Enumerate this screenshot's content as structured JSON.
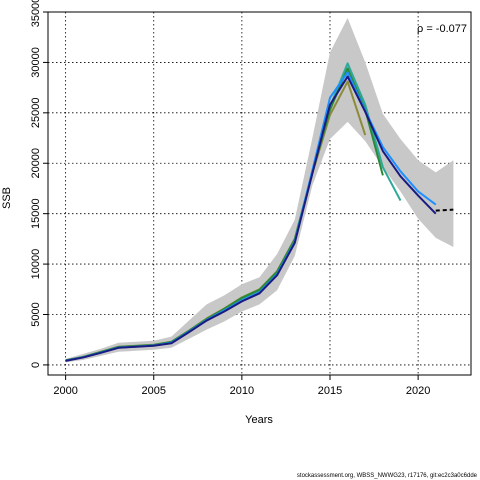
{
  "chart_data": {
    "type": "line",
    "xlabel": "Years",
    "ylabel": "SSB",
    "xlim": [
      1999,
      2023
    ],
    "ylim": [
      -1000,
      35000
    ],
    "x_ticks": [
      2000,
      2005,
      2010,
      2015,
      2020
    ],
    "y_ticks": [
      0,
      5000,
      10000,
      15000,
      20000,
      25000,
      30000,
      35000
    ],
    "grid": true,
    "annotation": "ρ = -0.077",
    "footer": "stockassessment.org, WBSS_NWWG23, r17176, git:ec2c3a0c6dde",
    "band": {
      "color": "#c8c8c8",
      "x": [
        2000,
        2001,
        2002,
        2003,
        2004,
        2005,
        2006,
        2007,
        2008,
        2009,
        2010,
        2011,
        2012,
        2013,
        2014,
        2015,
        2016,
        2017,
        2018,
        2019,
        2020,
        2021,
        2022
      ],
      "lower": [
        250,
        500,
        900,
        1300,
        1400,
        1500,
        1700,
        2600,
        3500,
        4300,
        5300,
        6000,
        7400,
        10800,
        17800,
        22400,
        24100,
        22200,
        19600,
        17200,
        14500,
        12600,
        11700
      ],
      "upper": [
        600,
        1100,
        1600,
        2200,
        2300,
        2400,
        2800,
        4400,
        6000,
        6900,
        8000,
        8700,
        11000,
        14400,
        22500,
        31000,
        34400,
        30000,
        24900,
        22400,
        20300,
        19100,
        20300
      ]
    },
    "series": [
      {
        "color": "#8b8b3a",
        "x": [
          2000,
          2001,
          2002,
          2003,
          2004,
          2005,
          2006,
          2007,
          2008,
          2009,
          2010,
          2011,
          2012,
          2013,
          2014,
          2015,
          2016,
          2017
        ],
        "values": [
          450,
          800,
          1300,
          1800,
          1900,
          2000,
          2300,
          3400,
          4600,
          5600,
          6700,
          7500,
          9300,
          12500,
          19000,
          24800,
          28100,
          22800
        ]
      },
      {
        "color": "#2ea89a",
        "x": [
          2000,
          2001,
          2002,
          2003,
          2004,
          2005,
          2006,
          2007,
          2008,
          2009,
          2010,
          2011,
          2012,
          2013,
          2014,
          2015,
          2016,
          2017,
          2018,
          2019
        ],
        "values": [
          450,
          780,
          1250,
          1750,
          1850,
          1950,
          2250,
          3350,
          4500,
          5500,
          6600,
          7400,
          9200,
          12400,
          19200,
          25600,
          29900,
          25800,
          19600,
          16300
        ]
      },
      {
        "color": "#2a8a3a",
        "x": [
          2000,
          2001,
          2002,
          2003,
          2004,
          2005,
          2006,
          2007,
          2008,
          2009,
          2010,
          2011,
          2012,
          2013,
          2014,
          2015,
          2016,
          2017,
          2018
        ],
        "values": [
          450,
          790,
          1280,
          1780,
          1880,
          1980,
          2280,
          3380,
          4550,
          5550,
          6650,
          7450,
          9250,
          12450,
          19100,
          25300,
          29400,
          25300,
          18800
        ]
      },
      {
        "color": "#1e90ff",
        "x": [
          2000,
          2001,
          2002,
          2003,
          2004,
          2005,
          2006,
          2007,
          2008,
          2009,
          2010,
          2011,
          2012,
          2013,
          2014,
          2015,
          2016,
          2017,
          2018,
          2019,
          2020,
          2021
        ],
        "values": [
          420,
          760,
          1220,
          1720,
          1820,
          1920,
          2200,
          3300,
          4450,
          5400,
          6400,
          7200,
          9000,
          12200,
          19300,
          26500,
          29000,
          25200,
          21600,
          19200,
          17200,
          15900
        ]
      },
      {
        "color": "#1a1a80",
        "x": [
          2000,
          2001,
          2002,
          2003,
          2004,
          2005,
          2006,
          2007,
          2008,
          2009,
          2010,
          2011,
          2012,
          2013,
          2014,
          2015,
          2016,
          2017,
          2018,
          2019,
          2020,
          2021
        ],
        "values": [
          400,
          740,
          1200,
          1700,
          1800,
          1900,
          2150,
          3250,
          4400,
          5300,
          6300,
          7100,
          8900,
          12100,
          19000,
          25800,
          28600,
          25100,
          21200,
          18700,
          16800,
          15000
        ]
      },
      {
        "color": "#000000",
        "dashed": true,
        "x": [
          2021,
          2022
        ],
        "values": [
          15300,
          15400
        ]
      }
    ]
  }
}
